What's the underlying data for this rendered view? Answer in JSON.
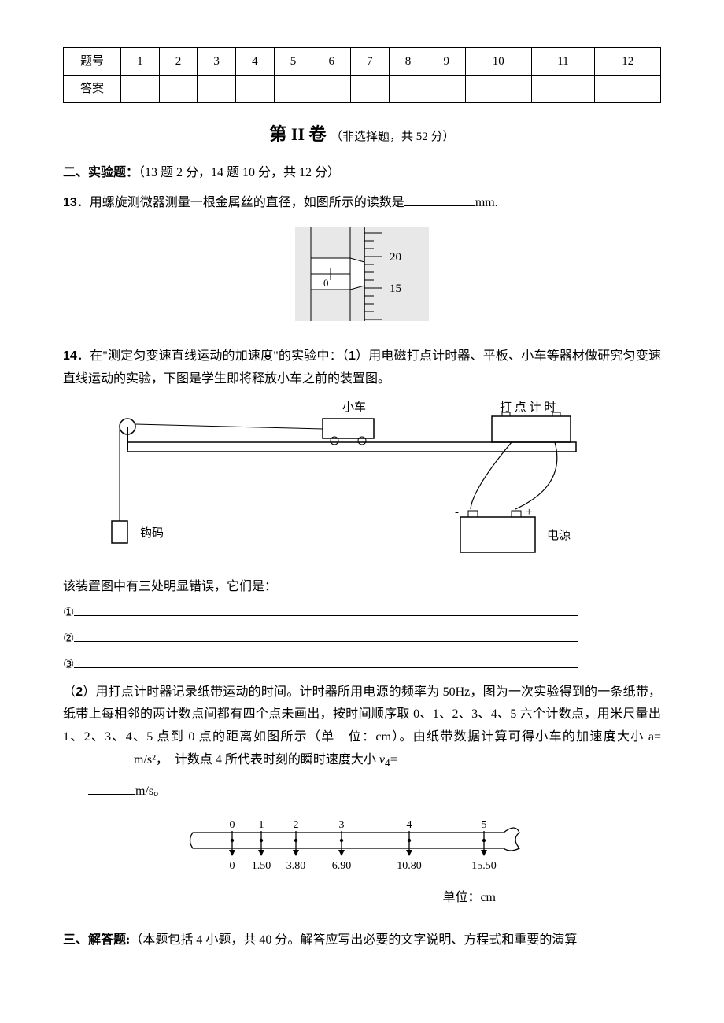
{
  "table": {
    "row1_label": "题号",
    "row2_label": "答案",
    "numbers": [
      "1",
      "2",
      "3",
      "4",
      "5",
      "6",
      "7",
      "8",
      "9",
      "10",
      "11",
      "12"
    ]
  },
  "section2": {
    "title_main": "第 II 卷",
    "title_sub": "（非选择题，共 52 分）"
  },
  "experiment": {
    "heading": "二、实验题：",
    "heading_note": "（13 题 2 分，14 题 10 分，共 12 分）"
  },
  "q13": {
    "num": "13",
    "text_before": "．用螺旋测微器测量一根金属丝的直径，如图所示的读数是",
    "text_after": "mm."
  },
  "micrometer": {
    "main_tick_label": "0",
    "thimble_top": "20",
    "thimble_bottom": "15",
    "bg_color": "#e8e8e8",
    "line_color": "#000000"
  },
  "q14": {
    "num": "14",
    "part1_open": "．在\"测定匀变速直线运动的加速度\"的实验中：（",
    "part1_bold": "1",
    "part1_rest": "）用电磁打点计时器、平板、小车等器材做研究匀变速直线运动的实验，下图是学生即将释放小车之前的装置图。"
  },
  "apparatus": {
    "cart_label": "小车",
    "timer_label": "打 点 计 时",
    "weight_label": "钩码",
    "power_label": "电源",
    "minus": "-",
    "plus": "+"
  },
  "errors": {
    "intro": "该装置图中有三处明显错误，它们是：",
    "m1": "①",
    "m2": "②",
    "m3": "③"
  },
  "q14b": {
    "open": "（",
    "bold": "2",
    "text1": "）用打点计时器记录纸带运动的时间。计时器所用电源的频率为 50Hz，图为一次实验得到的一条纸带，纸带上每相邻的两计数点间都有四个点未画出，按时间顺序取 0、1、2、3、4、5 六个计数点，用米尺量出 1、2、3、4、5 点到 0 点的距离如图所示（单　位：cm）。由纸带数据计算可得小车的加速度大小 a=",
    "unit_a": "m/s²，　计数点 4 所代表时刻的瞬时速度大小 ",
    "v4_sym": "v",
    "v4_sub": "4",
    "equals": "=",
    "unit_v": "m/s。",
    "tape_points": [
      "0",
      "1",
      "2",
      "3",
      "4",
      "5"
    ],
    "tape_values": [
      "0",
      "1.50",
      "3.80",
      "6.90",
      "10.80",
      "15.50"
    ],
    "tape_positions_x": [
      55,
      92,
      136,
      194,
      280,
      375
    ],
    "unit_label": "单位：cm"
  },
  "solve": {
    "heading": "三、解答题:",
    "note": "（本题包括 4 小题，共 40 分。解答应写出必要的文字说明、方程式和重要的演算"
  }
}
